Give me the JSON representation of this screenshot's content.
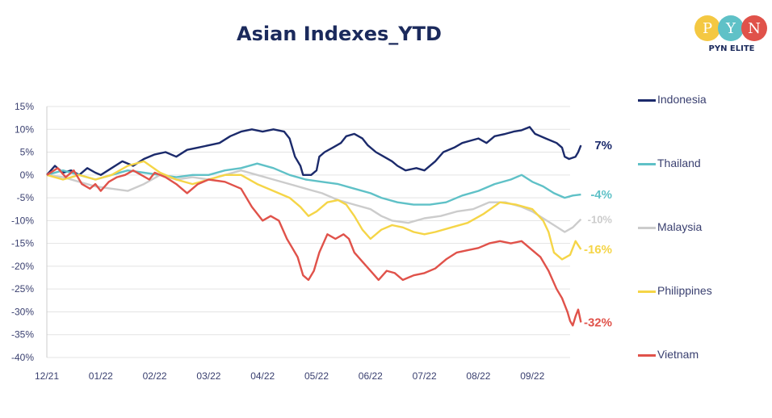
{
  "title": "Asian Indexes_YTD",
  "logo": {
    "letters": [
      "P",
      "Y",
      "N"
    ],
    "letter_colors": [
      "#f4c842",
      "#5fc1c7",
      "#e0524a"
    ],
    "text": "PYN ELITE"
  },
  "chart_data": {
    "type": "line",
    "title": "Asian Indexes_YTD",
    "xlabel": "",
    "ylabel": "",
    "x_ticks": [
      "12/21",
      "01/22",
      "02/22",
      "03/22",
      "04/22",
      "05/22",
      "06/22",
      "07/22",
      "08/22",
      "09/22"
    ],
    "y_ticks": [
      "15%",
      "10%",
      "5%",
      "0%",
      "-5%",
      "-10%",
      "-15%",
      "-20%",
      "-25%",
      "-30%",
      "-35%",
      "-40%"
    ],
    "ylim": [
      -40,
      15
    ],
    "xlim": [
      0,
      9.7
    ],
    "grid": true,
    "legend_position": "right",
    "series": [
      {
        "name": "Indonesia",
        "color": "#1b2a6b",
        "end_label": "7%",
        "end_value": 6.5,
        "points": [
          [
            0,
            0
          ],
          [
            0.15,
            2
          ],
          [
            0.3,
            0.5
          ],
          [
            0.45,
            1
          ],
          [
            0.6,
            0
          ],
          [
            0.75,
            1.5
          ],
          [
            0.9,
            0.5
          ],
          [
            1,
            0
          ],
          [
            1.2,
            1.5
          ],
          [
            1.4,
            3
          ],
          [
            1.6,
            2
          ],
          [
            1.8,
            3.5
          ],
          [
            2,
            4.5
          ],
          [
            2.2,
            5
          ],
          [
            2.4,
            4
          ],
          [
            2.6,
            5.5
          ],
          [
            2.8,
            6
          ],
          [
            3,
            6.5
          ],
          [
            3.2,
            7
          ],
          [
            3.4,
            8.5
          ],
          [
            3.6,
            9.5
          ],
          [
            3.8,
            10
          ],
          [
            4,
            9.5
          ],
          [
            4.2,
            10
          ],
          [
            4.4,
            9.5
          ],
          [
            4.5,
            8
          ],
          [
            4.6,
            4
          ],
          [
            4.7,
            2
          ],
          [
            4.75,
            0
          ],
          [
            4.9,
            0
          ],
          [
            5,
            1
          ],
          [
            5.05,
            4
          ],
          [
            5.15,
            5
          ],
          [
            5.3,
            6
          ],
          [
            5.45,
            7
          ],
          [
            5.55,
            8.5
          ],
          [
            5.7,
            9
          ],
          [
            5.85,
            8
          ],
          [
            5.95,
            6.5
          ],
          [
            6.1,
            5
          ],
          [
            6.25,
            4
          ],
          [
            6.4,
            3
          ],
          [
            6.5,
            2
          ],
          [
            6.65,
            1
          ],
          [
            6.85,
            1.5
          ],
          [
            7,
            1
          ],
          [
            7.2,
            3
          ],
          [
            7.35,
            5
          ],
          [
            7.55,
            6
          ],
          [
            7.7,
            7
          ],
          [
            7.85,
            7.5
          ],
          [
            8,
            8
          ],
          [
            8.15,
            7
          ],
          [
            8.3,
            8.5
          ],
          [
            8.5,
            9
          ],
          [
            8.65,
            9.5
          ],
          [
            8.8,
            9.8
          ],
          [
            8.95,
            10.5
          ],
          [
            9.05,
            9
          ],
          [
            9.25,
            8
          ],
          [
            9.45,
            7
          ],
          [
            9.55,
            6
          ],
          [
            9.6,
            4
          ],
          [
            9.68,
            3.5
          ],
          [
            9.8,
            4
          ],
          [
            9.85,
            5
          ],
          [
            9.9,
            6.5
          ]
        ]
      },
      {
        "name": "Thailand",
        "color": "#5fc1c7",
        "end_label": "-4%",
        "end_value": -4.3,
        "points": [
          [
            0,
            0
          ],
          [
            0.3,
            1
          ],
          [
            0.6,
            0
          ],
          [
            0.9,
            -1
          ],
          [
            1.2,
            0
          ],
          [
            1.5,
            1
          ],
          [
            1.8,
            0.5
          ],
          [
            2.1,
            0
          ],
          [
            2.4,
            -0.5
          ],
          [
            2.7,
            0
          ],
          [
            3,
            0
          ],
          [
            3.3,
            1
          ],
          [
            3.6,
            1.5
          ],
          [
            3.9,
            2.5
          ],
          [
            4.2,
            1.5
          ],
          [
            4.5,
            0
          ],
          [
            4.8,
            -1
          ],
          [
            5.1,
            -1.5
          ],
          [
            5.4,
            -2
          ],
          [
            5.7,
            -3
          ],
          [
            6,
            -4
          ],
          [
            6.2,
            -5
          ],
          [
            6.5,
            -6
          ],
          [
            6.8,
            -6.5
          ],
          [
            7.1,
            -6.5
          ],
          [
            7.4,
            -6
          ],
          [
            7.7,
            -4.5
          ],
          [
            8,
            -3.5
          ],
          [
            8.3,
            -2
          ],
          [
            8.6,
            -1
          ],
          [
            8.8,
            0
          ],
          [
            9,
            -1.5
          ],
          [
            9.2,
            -2.5
          ],
          [
            9.4,
            -4
          ],
          [
            9.6,
            -5
          ],
          [
            9.75,
            -4.5
          ],
          [
            9.9,
            -4.3
          ]
        ]
      },
      {
        "name": "Malaysia",
        "color": "#cccccc",
        "end_label": "-10%",
        "end_value": -9.7,
        "points": [
          [
            0,
            0
          ],
          [
            0.3,
            -0.5
          ],
          [
            0.6,
            -1.5
          ],
          [
            0.9,
            -2.5
          ],
          [
            1.2,
            -3
          ],
          [
            1.5,
            -3.5
          ],
          [
            1.8,
            -2
          ],
          [
            2.1,
            0
          ],
          [
            2.4,
            -1
          ],
          [
            2.7,
            -0.5
          ],
          [
            3,
            -1
          ],
          [
            3.3,
            0
          ],
          [
            3.6,
            1
          ],
          [
            3.9,
            0
          ],
          [
            4.2,
            -1
          ],
          [
            4.5,
            -2
          ],
          [
            4.8,
            -3
          ],
          [
            5.1,
            -4
          ],
          [
            5.4,
            -5.5
          ],
          [
            5.7,
            -6.5
          ],
          [
            6,
            -7.5
          ],
          [
            6.2,
            -9
          ],
          [
            6.4,
            -10
          ],
          [
            6.7,
            -10.5
          ],
          [
            7,
            -9.5
          ],
          [
            7.3,
            -9
          ],
          [
            7.6,
            -8
          ],
          [
            7.9,
            -7.5
          ],
          [
            8.2,
            -6
          ],
          [
            8.5,
            -6
          ],
          [
            8.8,
            -7
          ],
          [
            9,
            -8
          ],
          [
            9.2,
            -9.5
          ],
          [
            9.4,
            -11
          ],
          [
            9.6,
            -12.5
          ],
          [
            9.75,
            -11.5
          ],
          [
            9.9,
            -9.7
          ]
        ]
      },
      {
        "name": "Philippines",
        "color": "#f5d547",
        "end_label": "-16%",
        "end_value": -16.3,
        "points": [
          [
            0,
            0
          ],
          [
            0.3,
            -1
          ],
          [
            0.6,
            0
          ],
          [
            0.9,
            -1
          ],
          [
            1.2,
            0
          ],
          [
            1.5,
            2
          ],
          [
            1.8,
            3
          ],
          [
            2.1,
            0.5
          ],
          [
            2.4,
            -1
          ],
          [
            2.7,
            -2
          ],
          [
            3,
            -1
          ],
          [
            3.3,
            0
          ],
          [
            3.6,
            0
          ],
          [
            3.9,
            -2
          ],
          [
            4.2,
            -3.5
          ],
          [
            4.5,
            -5
          ],
          [
            4.7,
            -7
          ],
          [
            4.85,
            -9
          ],
          [
            5,
            -8
          ],
          [
            5.2,
            -6
          ],
          [
            5.4,
            -5.5
          ],
          [
            5.55,
            -6.5
          ],
          [
            5.7,
            -9
          ],
          [
            5.85,
            -12
          ],
          [
            6,
            -14
          ],
          [
            6.2,
            -12
          ],
          [
            6.4,
            -11
          ],
          [
            6.6,
            -11.5
          ],
          [
            6.8,
            -12.5
          ],
          [
            7,
            -13
          ],
          [
            7.2,
            -12.5
          ],
          [
            7.5,
            -11.5
          ],
          [
            7.8,
            -10.5
          ],
          [
            8.1,
            -8.5
          ],
          [
            8.4,
            -6
          ],
          [
            8.7,
            -6.5
          ],
          [
            9,
            -7.5
          ],
          [
            9.2,
            -10
          ],
          [
            9.3,
            -12.5
          ],
          [
            9.4,
            -17
          ],
          [
            9.55,
            -18.5
          ],
          [
            9.7,
            -17.5
          ],
          [
            9.8,
            -14.5
          ],
          [
            9.9,
            -16.3
          ]
        ]
      },
      {
        "name": "Vietnam",
        "color": "#e0524a",
        "end_label": "-32%",
        "end_value": -32.3,
        "points": [
          [
            0,
            0
          ],
          [
            0.2,
            1.5
          ],
          [
            0.35,
            -0.5
          ],
          [
            0.5,
            1
          ],
          [
            0.65,
            -2
          ],
          [
            0.8,
            -3
          ],
          [
            0.9,
            -2
          ],
          [
            1,
            -3.5
          ],
          [
            1.15,
            -1.5
          ],
          [
            1.3,
            -0.5
          ],
          [
            1.45,
            0
          ],
          [
            1.6,
            1
          ],
          [
            1.75,
            0
          ],
          [
            1.9,
            -1
          ],
          [
            2,
            0.5
          ],
          [
            2.2,
            -0.5
          ],
          [
            2.4,
            -2
          ],
          [
            2.6,
            -4
          ],
          [
            2.8,
            -2
          ],
          [
            3,
            -1
          ],
          [
            3.3,
            -1.5
          ],
          [
            3.6,
            -3
          ],
          [
            3.8,
            -7
          ],
          [
            4,
            -10
          ],
          [
            4.15,
            -9
          ],
          [
            4.3,
            -10
          ],
          [
            4.45,
            -14
          ],
          [
            4.55,
            -16
          ],
          [
            4.65,
            -18
          ],
          [
            4.75,
            -22
          ],
          [
            4.85,
            -23
          ],
          [
            4.95,
            -21
          ],
          [
            5.05,
            -17
          ],
          [
            5.2,
            -13
          ],
          [
            5.35,
            -14
          ],
          [
            5.5,
            -13
          ],
          [
            5.6,
            -14
          ],
          [
            5.7,
            -17
          ],
          [
            5.85,
            -19
          ],
          [
            6,
            -21
          ],
          [
            6.15,
            -23
          ],
          [
            6.3,
            -21
          ],
          [
            6.45,
            -21.5
          ],
          [
            6.6,
            -23
          ],
          [
            6.8,
            -22
          ],
          [
            7,
            -21.5
          ],
          [
            7.2,
            -20.5
          ],
          [
            7.4,
            -18.5
          ],
          [
            7.6,
            -17
          ],
          [
            7.8,
            -16.5
          ],
          [
            8,
            -16
          ],
          [
            8.2,
            -15
          ],
          [
            8.4,
            -14.5
          ],
          [
            8.6,
            -15
          ],
          [
            8.8,
            -14.5
          ],
          [
            9,
            -16.5
          ],
          [
            9.15,
            -18
          ],
          [
            9.3,
            -21
          ],
          [
            9.45,
            -25
          ],
          [
            9.55,
            -27
          ],
          [
            9.65,
            -30
          ],
          [
            9.7,
            -32
          ],
          [
            9.75,
            -33
          ],
          [
            9.8,
            -31
          ],
          [
            9.85,
            -29.5
          ],
          [
            9.9,
            -32.3
          ]
        ]
      }
    ]
  }
}
